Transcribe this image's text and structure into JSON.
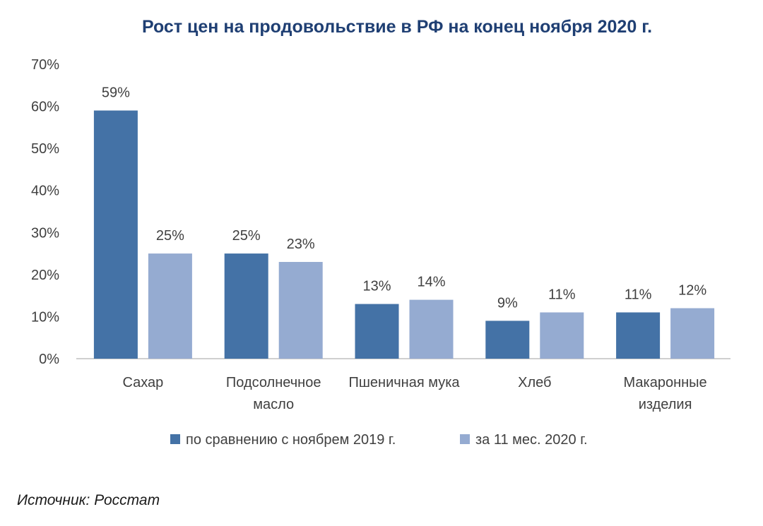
{
  "chart_data": {
    "type": "bar",
    "title": "Рост цен на продовольствие в РФ на конец ноября 2020 г.",
    "categories": [
      [
        "Сахар"
      ],
      [
        "Подсолнечное",
        "масло"
      ],
      [
        "Пшеничная мука"
      ],
      [
        "Хлеб"
      ],
      [
        "Макаронные",
        "изделия"
      ]
    ],
    "series": [
      {
        "name": "по сравнению с ноябрем 2019 г.",
        "color": "#4472a6",
        "values": [
          59,
          25,
          13,
          9,
          11
        ],
        "labels": [
          "59%",
          "25%",
          "13%",
          "9%",
          "11%"
        ]
      },
      {
        "name": "за 11 мес. 2020 г.",
        "color": "#95abd1",
        "values": [
          25,
          23,
          14,
          11,
          12
        ],
        "labels": [
          "25%",
          "23%",
          "14%",
          "11%",
          "12%"
        ]
      }
    ],
    "y_ticks": [
      {
        "value": 0,
        "label": "0%"
      },
      {
        "value": 10,
        "label": "10%"
      },
      {
        "value": 20,
        "label": "20%"
      },
      {
        "value": 30,
        "label": "30%"
      },
      {
        "value": 40,
        "label": "40%"
      },
      {
        "value": 50,
        "label": "50%"
      },
      {
        "value": 60,
        "label": "60%"
      },
      {
        "value": 70,
        "label": "70%"
      }
    ],
    "ylim": [
      0,
      70
    ],
    "grid": false,
    "legend_position": "bottom"
  },
  "source_note": "Источник: Росстат"
}
